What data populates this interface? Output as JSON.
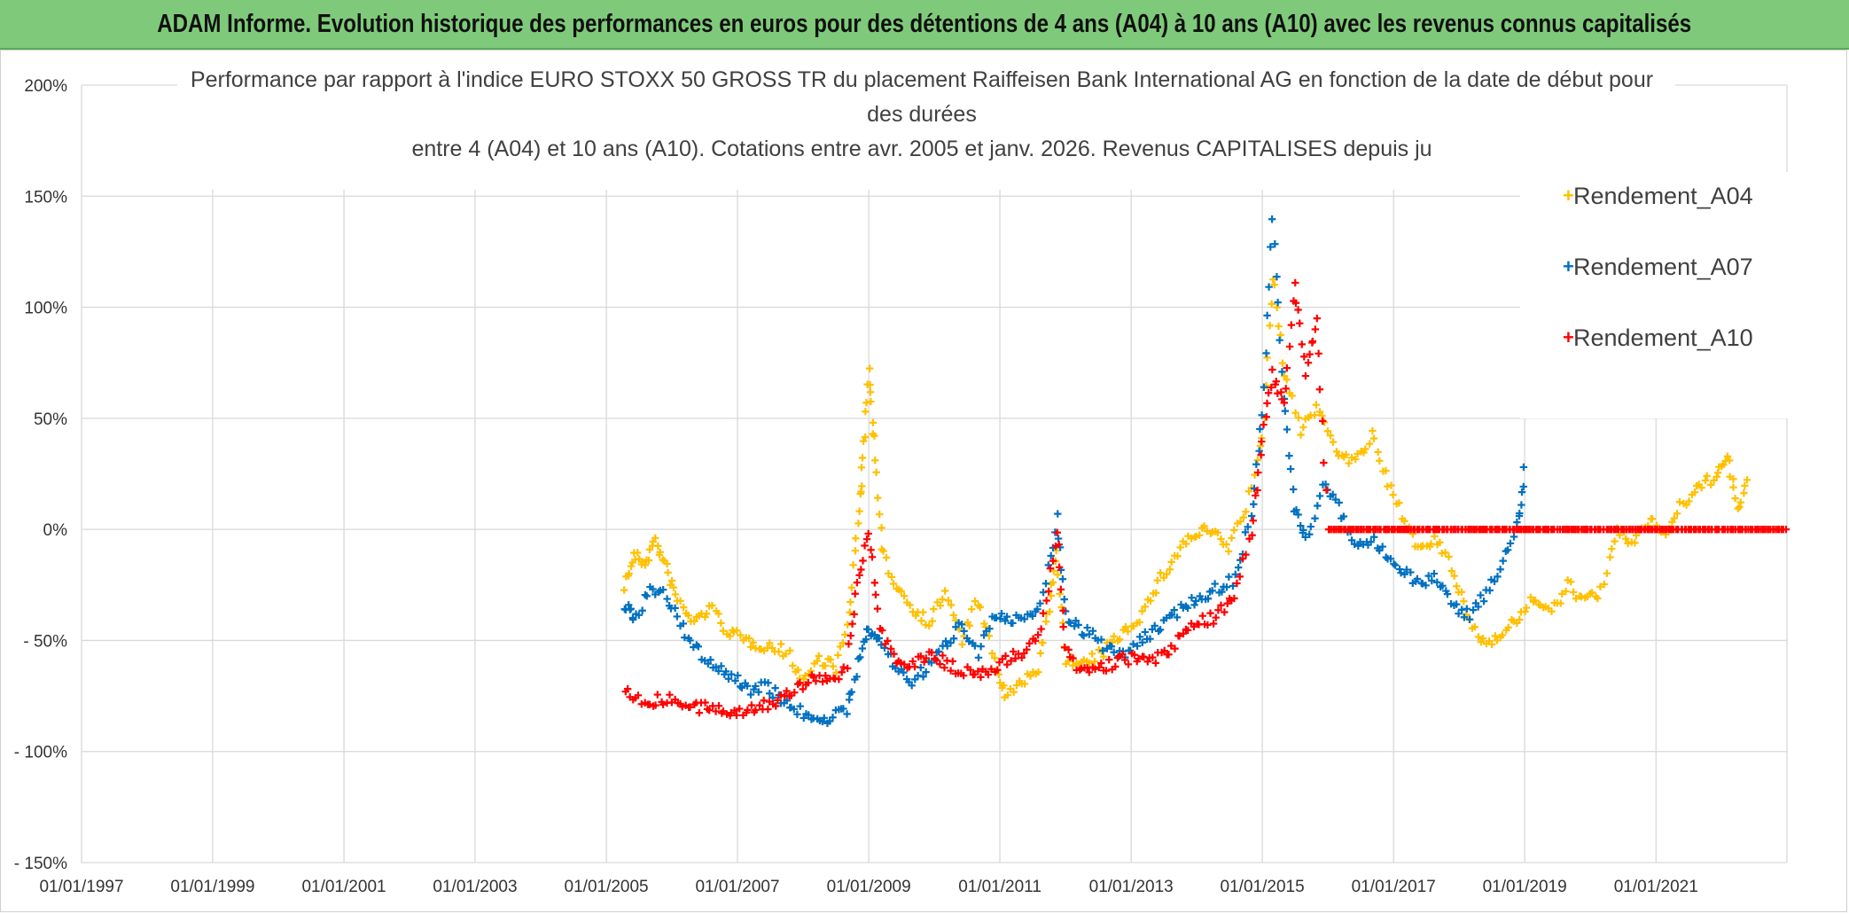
{
  "banner": {
    "title": "ADAM Informe. Evolution historique des performances en euros pour des détentions de 4 ans (A04) à 10 ans (A10) avec les revenus connus capitalisés"
  },
  "colors": {
    "banner_bg": "#7fca7a",
    "A04": "#ffc000",
    "A07": "#0070c0",
    "A10": "#ff0000",
    "grid": "#d9d9d9"
  },
  "chart_data": {
    "type": "scatter",
    "title_lines": [
      "Performance par rapport à l'indice EURO STOXX 50 GROSS TR  du placement Raiffeisen Bank International AG en fonction de la date de début pour",
      "des durées",
      "entre 4 (A04) et 10 ans (A10). Cotations entre avr. 2005 et janv. 2026. Revenus CAPITALISES depuis ju"
    ],
    "x_axis": {
      "min": "1997-01-01",
      "max": "2022-12-31",
      "tick_labels": [
        "01/01/1997",
        "01/01/1999",
        "01/01/2001",
        "01/01/2003",
        "01/01/2005",
        "01/01/2007",
        "01/01/2009",
        "01/01/2011",
        "01/01/2013",
        "01/01/2015",
        "01/01/2017",
        "01/01/2019",
        "01/01/2021"
      ]
    },
    "y_axis": {
      "min": -150,
      "max": 200,
      "unit": "%",
      "tick_labels": [
        "200%",
        "150%",
        "100%",
        "50%",
        "0%",
        "- 50%",
        "- 100%",
        "- 150%"
      ],
      "tick_values": [
        200,
        150,
        100,
        50,
        0,
        -50,
        -100,
        -150
      ]
    },
    "grid": true,
    "legend_position": "top-right",
    "marker": "plus",
    "series": [
      {
        "name": "Rendement_A04",
        "points": [
          [
            "2005-04-15",
            -25
          ],
          [
            "2005-06-01",
            -12
          ],
          [
            "2005-08-01",
            -15
          ],
          [
            "2005-10-01",
            -5
          ],
          [
            "2005-12-01",
            -18
          ],
          [
            "2006-02-01",
            -32
          ],
          [
            "2006-05-01",
            -42
          ],
          [
            "2006-08-01",
            -35
          ],
          [
            "2006-11-01",
            -45
          ],
          [
            "2007-02-01",
            -50
          ],
          [
            "2007-06-01",
            -52
          ],
          [
            "2007-10-01",
            -55
          ],
          [
            "2008-01-01",
            -68
          ],
          [
            "2008-04-01",
            -58
          ],
          [
            "2008-07-01",
            -62
          ],
          [
            "2008-09-15",
            -40
          ],
          [
            "2008-11-01",
            5
          ],
          [
            "2008-12-01",
            30
          ],
          [
            "2009-01-01",
            72
          ],
          [
            "2009-02-01",
            40
          ],
          [
            "2009-03-15",
            -10
          ],
          [
            "2009-06-01",
            -25
          ],
          [
            "2009-09-01",
            -35
          ],
          [
            "2009-12-01",
            -42
          ],
          [
            "2010-03-01",
            -28
          ],
          [
            "2010-06-01",
            -50
          ],
          [
            "2010-09-01",
            -32
          ],
          [
            "2010-12-01",
            -60
          ],
          [
            "2011-02-01",
            -75
          ],
          [
            "2011-05-01",
            -70
          ],
          [
            "2011-08-01",
            -62
          ],
          [
            "2011-10-01",
            -35
          ],
          [
            "2011-11-15",
            -12
          ],
          [
            "2012-01-01",
            -58
          ],
          [
            "2012-04-01",
            -62
          ],
          [
            "2012-08-01",
            -55
          ],
          [
            "2012-12-01",
            -45
          ],
          [
            "2013-03-01",
            -38
          ],
          [
            "2013-07-01",
            -20
          ],
          [
            "2013-11-01",
            -5
          ],
          [
            "2014-03-01",
            0
          ],
          [
            "2014-07-01",
            -8
          ],
          [
            "2014-10-01",
            10
          ],
          [
            "2015-01-01",
            40
          ],
          [
            "2015-03-01",
            115
          ],
          [
            "2015-05-01",
            70
          ],
          [
            "2015-08-01",
            45
          ],
          [
            "2015-11-01",
            55
          ],
          [
            "2016-03-01",
            35
          ],
          [
            "2016-06-01",
            30
          ],
          [
            "2016-09-01",
            42
          ],
          [
            "2016-12-01",
            20
          ],
          [
            "2017-03-01",
            5
          ],
          [
            "2017-06-01",
            -10
          ],
          [
            "2017-09-01",
            -5
          ],
          [
            "2017-12-01",
            -20
          ],
          [
            "2018-03-01",
            -42
          ],
          [
            "2018-06-01",
            -52
          ],
          [
            "2018-09-01",
            -45
          ],
          [
            "2018-12-01",
            -40
          ],
          [
            "2019-03-01",
            -30
          ],
          [
            "2019-06-01",
            -38
          ],
          [
            "2019-09-01",
            -25
          ],
          [
            "2019-12-01",
            -32
          ],
          [
            "2020-03-01",
            -28
          ],
          [
            "2020-06-01",
            -2
          ],
          [
            "2020-09-01",
            -5
          ],
          [
            "2020-12-01",
            5
          ],
          [
            "2021-03-01",
            -2
          ],
          [
            "2021-06-01",
            12
          ],
          [
            "2021-09-01",
            18
          ],
          [
            "2021-12-01",
            25
          ],
          [
            "2022-02-01",
            32
          ],
          [
            "2022-04-01",
            10
          ],
          [
            "2022-06-01",
            22
          ]
        ]
      },
      {
        "name": "Rendement_A07",
        "points": [
          [
            "2005-04-15",
            -35
          ],
          [
            "2005-06-01",
            -40
          ],
          [
            "2005-09-01",
            -28
          ],
          [
            "2005-12-01",
            -30
          ],
          [
            "2006-03-01",
            -45
          ],
          [
            "2006-06-01",
            -55
          ],
          [
            "2006-09-01",
            -62
          ],
          [
            "2006-12-01",
            -66
          ],
          [
            "2007-03-01",
            -72
          ],
          [
            "2007-06-01",
            -70
          ],
          [
            "2007-09-01",
            -76
          ],
          [
            "2007-12-01",
            -82
          ],
          [
            "2008-03-01",
            -84
          ],
          [
            "2008-06-01",
            -85
          ],
          [
            "2008-09-01",
            -82
          ],
          [
            "2008-11-01",
            -60
          ],
          [
            "2009-01-01",
            -45
          ],
          [
            "2009-03-01",
            -50
          ],
          [
            "2009-06-01",
            -62
          ],
          [
            "2009-09-01",
            -68
          ],
          [
            "2009-12-01",
            -62
          ],
          [
            "2010-03-01",
            -52
          ],
          [
            "2010-06-01",
            -42
          ],
          [
            "2010-09-01",
            -55
          ],
          [
            "2010-12-01",
            -38
          ],
          [
            "2011-03-01",
            -42
          ],
          [
            "2011-06-01",
            -40
          ],
          [
            "2011-09-01",
            -30
          ],
          [
            "2011-11-15",
            5
          ],
          [
            "2012-01-01",
            -38
          ],
          [
            "2012-04-01",
            -45
          ],
          [
            "2012-08-01",
            -52
          ],
          [
            "2012-12-01",
            -56
          ],
          [
            "2013-04-01",
            -48
          ],
          [
            "2013-08-01",
            -40
          ],
          [
            "2013-12-01",
            -32
          ],
          [
            "2014-04-01",
            -28
          ],
          [
            "2014-08-01",
            -22
          ],
          [
            "2014-11-01",
            5
          ],
          [
            "2015-01-01",
            50
          ],
          [
            "2015-03-01",
            140
          ],
          [
            "2015-05-01",
            60
          ],
          [
            "2015-07-01",
            10
          ],
          [
            "2015-09-01",
            -5
          ],
          [
            "2015-12-01",
            20
          ],
          [
            "2016-03-01",
            10
          ],
          [
            "2016-06-01",
            -8
          ],
          [
            "2016-09-01",
            -5
          ],
          [
            "2016-12-01",
            -12
          ],
          [
            "2017-03-01",
            -18
          ],
          [
            "2017-06-01",
            -25
          ],
          [
            "2017-09-01",
            -22
          ],
          [
            "2017-12-01",
            -35
          ],
          [
            "2018-03-01",
            -38
          ],
          [
            "2018-06-01",
            -28
          ],
          [
            "2018-09-01",
            -15
          ],
          [
            "2018-12-01",
            5
          ],
          [
            "2019-01-01",
            30
          ]
        ]
      },
      {
        "name": "Rendement_A10",
        "points": [
          [
            "2005-04-15",
            -72
          ],
          [
            "2005-08-01",
            -78
          ],
          [
            "2005-12-01",
            -76
          ],
          [
            "2006-04-01",
            -80
          ],
          [
            "2006-08-01",
            -81
          ],
          [
            "2006-12-01",
            -82
          ],
          [
            "2007-04-01",
            -80
          ],
          [
            "2007-08-01",
            -78
          ],
          [
            "2007-12-01",
            -72
          ],
          [
            "2008-03-01",
            -65
          ],
          [
            "2008-06-01",
            -70
          ],
          [
            "2008-09-01",
            -60
          ],
          [
            "2008-11-01",
            -25
          ],
          [
            "2009-01-01",
            0
          ],
          [
            "2009-03-01",
            -45
          ],
          [
            "2009-06-01",
            -58
          ],
          [
            "2009-09-01",
            -62
          ],
          [
            "2009-12-01",
            -55
          ],
          [
            "2010-03-01",
            -60
          ],
          [
            "2010-06-01",
            -64
          ],
          [
            "2010-09-01",
            -66
          ],
          [
            "2010-12-01",
            -62
          ],
          [
            "2011-03-01",
            -58
          ],
          [
            "2011-06-01",
            -55
          ],
          [
            "2011-09-01",
            -40
          ],
          [
            "2011-11-15",
            0
          ],
          [
            "2012-01-01",
            -55
          ],
          [
            "2012-04-01",
            -65
          ],
          [
            "2012-08-01",
            -62
          ],
          [
            "2012-12-01",
            -58
          ],
          [
            "2013-04-01",
            -60
          ],
          [
            "2013-08-01",
            -55
          ],
          [
            "2013-12-01",
            -42
          ],
          [
            "2014-04-01",
            -40
          ],
          [
            "2014-08-01",
            -30
          ],
          [
            "2014-11-01",
            0
          ],
          [
            "2015-01-01",
            40
          ],
          [
            "2015-03-01",
            70
          ],
          [
            "2015-05-01",
            55
          ],
          [
            "2015-07-01",
            110
          ],
          [
            "2015-09-01",
            70
          ],
          [
            "2015-11-01",
            95
          ],
          [
            "2016-01-01",
            0
          ],
          [
            "2016-06-01",
            0
          ],
          [
            "2017-01-01",
            0
          ],
          [
            "2018-01-01",
            0
          ],
          [
            "2019-01-01",
            0
          ],
          [
            "2020-01-01",
            0
          ],
          [
            "2021-01-01",
            0
          ],
          [
            "2022-01-01",
            0
          ],
          [
            "2022-12-31",
            0
          ]
        ]
      }
    ]
  }
}
